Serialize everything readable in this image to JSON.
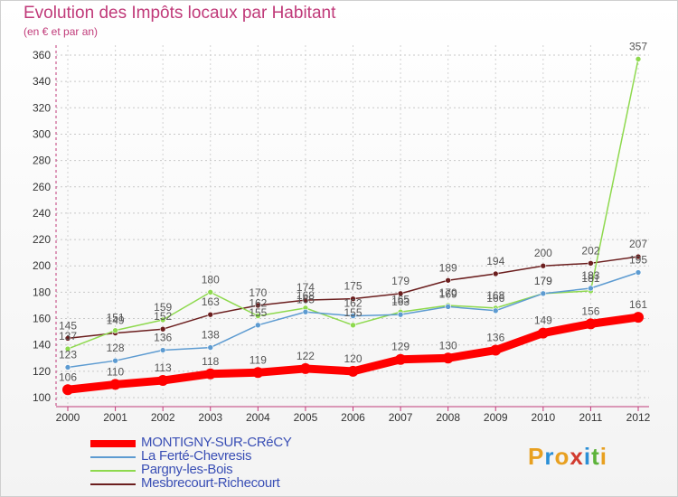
{
  "chart_data": {
    "type": "line",
    "title": "Evolution des Impôts locaux par Habitant",
    "subtitle": "(en € et par an)",
    "xlabel": "",
    "ylabel": "",
    "categories": [
      "2000",
      "2001",
      "2002",
      "2003",
      "2004",
      "2005",
      "2006",
      "2007",
      "2008",
      "2009",
      "2010",
      "2011",
      "2012"
    ],
    "ylim": [
      100,
      360
    ],
    "yticks": [
      100,
      120,
      140,
      160,
      180,
      200,
      220,
      240,
      260,
      280,
      300,
      320,
      340,
      360
    ],
    "grid": true,
    "legend_position": "bottom-left",
    "series": [
      {
        "name": "MONTIGNY-SUR-CRéCY",
        "color": "#ff0000",
        "labels_shown": true,
        "values": [
          106,
          110,
          113,
          118,
          119,
          122,
          120,
          129,
          130,
          136,
          149,
          156,
          161
        ]
      },
      {
        "name": "La Ferté-Chevresis",
        "color": "#5d9bd1",
        "labels_shown": true,
        "values": [
          123,
          128,
          136,
          138,
          155,
          165,
          162,
          163,
          169,
          166,
          179,
          183,
          195
        ]
      },
      {
        "name": "Pargny-les-Bois",
        "color": "#8ed94e",
        "labels_shown": true,
        "values": [
          137,
          151,
          159,
          180,
          162,
          168,
          155,
          165,
          170,
          168,
          179,
          181,
          357
        ]
      },
      {
        "name": "Mesbrecourt-Richecourt",
        "color": "#6b1e1e",
        "labels_shown": true,
        "values": [
          145,
          149,
          152,
          163,
          170,
          174,
          175,
          179,
          189,
          194,
          200,
          202,
          207
        ]
      }
    ]
  },
  "logo": {
    "letters": [
      "P",
      "r",
      "o",
      "x",
      "i",
      "t",
      "i"
    ],
    "colors": [
      "#e8a020",
      "#2a8fd6",
      "#e8a020",
      "#d23b2f",
      "#2a8fd6",
      "#5db33a",
      "#e8a020"
    ]
  }
}
